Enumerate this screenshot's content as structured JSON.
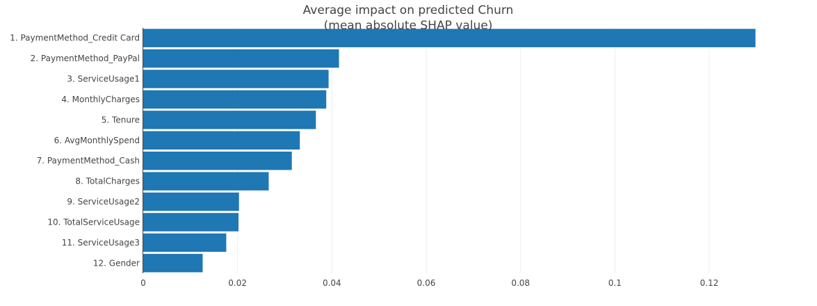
{
  "chart_data": {
    "type": "bar",
    "orientation": "horizontal",
    "title": "Average impact on predicted Churn",
    "subtitle": "(mean absolute SHAP value)",
    "xlabel": "",
    "ylabel": "",
    "xlim": [
      0,
      0.134
    ],
    "x_ticks": [
      0,
      0.02,
      0.04,
      0.06,
      0.08,
      0.1,
      0.12
    ],
    "x_tick_labels": [
      "0",
      "0.02",
      "0.04",
      "0.06",
      "0.08",
      "0.1",
      "0.12"
    ],
    "grid": true,
    "bar_color": "#1f77b4",
    "categories": [
      "1. PaymentMethod_Credit Card",
      "2. PaymentMethod_PayPal",
      "3. ServiceUsage1",
      "4. MonthlyCharges",
      "5. Tenure",
      "6. AvgMonthlySpend",
      "7. PaymentMethod_Cash",
      "8. TotalCharges",
      "9. ServiceUsage2",
      "10. TotalServiceUsage",
      "11. ServiceUsage3",
      "12. Gender"
    ],
    "values": [
      0.1298,
      0.0415,
      0.0393,
      0.0388,
      0.0366,
      0.0332,
      0.0315,
      0.0266,
      0.0203,
      0.0202,
      0.0176,
      0.0126
    ]
  }
}
